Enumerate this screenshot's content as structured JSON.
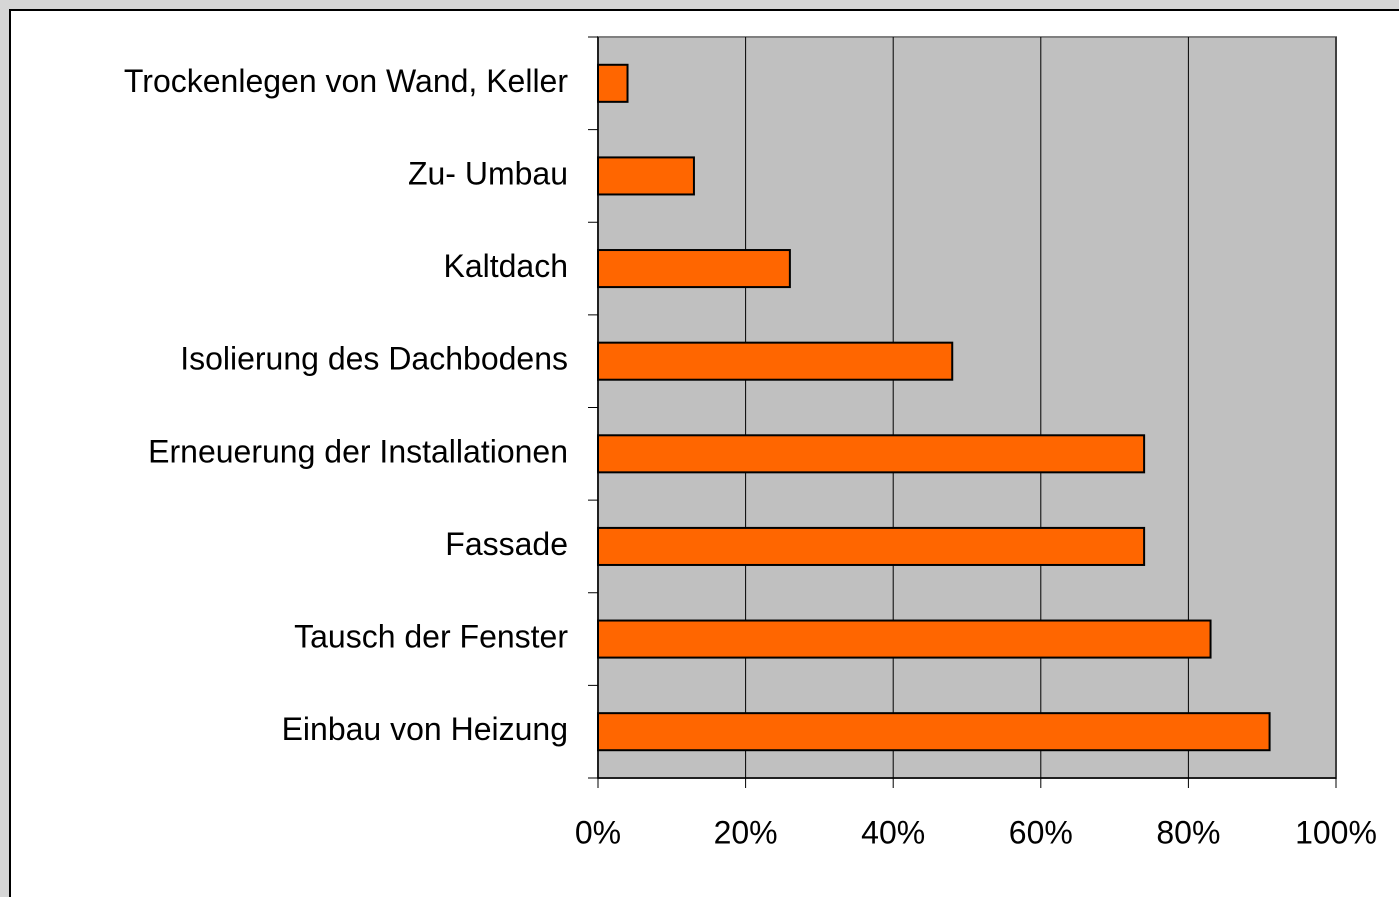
{
  "chart_data": {
    "type": "bar",
    "orientation": "horizontal",
    "categories": [
      "Trockenlegen von Wand, Keller",
      "Zu- Umbau",
      "Kaltdach",
      "Isolierung des Dachbodens",
      "Erneuerung der Installationen",
      "Fassade",
      "Tausch der Fenster",
      "Einbau von Heizung"
    ],
    "values": [
      4,
      13,
      26,
      48,
      74,
      74,
      83,
      91
    ],
    "color": "#ff6600",
    "xlim": [
      0,
      100
    ],
    "xticks": [
      {
        "value": 0,
        "label": "0%"
      },
      {
        "value": 20,
        "label": "20%"
      },
      {
        "value": 40,
        "label": "40%"
      },
      {
        "value": 60,
        "label": "60%"
      },
      {
        "value": 80,
        "label": "80%"
      },
      {
        "value": 100,
        "label": "100%"
      }
    ],
    "grid": true
  }
}
